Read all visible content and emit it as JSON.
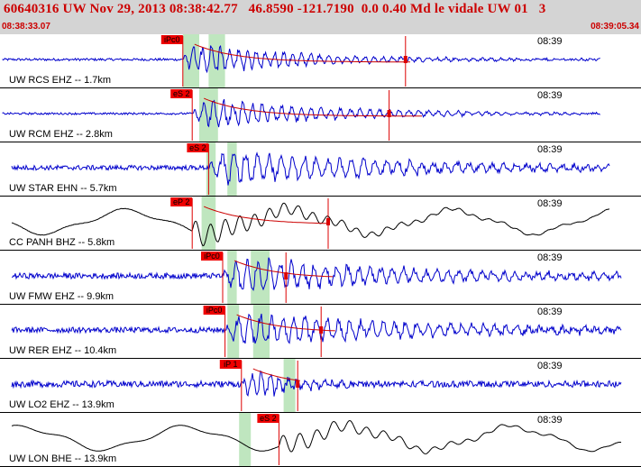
{
  "header": {
    "title": "60640316 UW Nov 29, 2013 08:38:42.77   46.8590 -121.7190  0.0 0.40 Md le vidale UW 01   3",
    "start_time": "08:38:33.07",
    "end_time": "08:39:05.34"
  },
  "colors": {
    "header_bg": "#d4d4d4",
    "title": "#cc0000",
    "trace_main": "#0000cc",
    "trace_alt": "#000000",
    "pick_line": "#dd0000",
    "pick_tag": "#ee0000",
    "window": "#bfe6bf",
    "coda": "#cc0000"
  },
  "tick_label": "08:39",
  "traces": [
    {
      "label": "UW RCS EHZ -- 1.7km",
      "time": "08:39",
      "pick": "iPc0",
      "color": "blue",
      "pick_time_s": 7.8,
      "windows_s": [
        [
          7.8,
          8.5
        ],
        [
          8.9,
          9.6
        ]
      ],
      "start_s": 0.1,
      "end_s": 25.6,
      "noise": 0.06,
      "amp": 0.95,
      "decay": 0.22,
      "freq": 2.6,
      "coda_end_s": 17.5,
      "end_mark_s": 17.3,
      "long_period": false
    },
    {
      "label": "UW RCM EHZ -- 2.8km",
      "time": "08:39",
      "pick": "eS 2",
      "color": "blue",
      "pick_time_s": 8.2,
      "windows_s": [
        [
          8.5,
          9.3
        ]
      ],
      "start_s": 0.1,
      "end_s": 25.6,
      "noise": 0.05,
      "amp": 0.85,
      "decay": 0.18,
      "freq": 2.4,
      "coda_end_s": 18.0,
      "end_mark_s": 16.6,
      "long_period": false
    },
    {
      "label": "UW STAR EHN -- 5.7km",
      "time": "08:39",
      "pick": "eS 2",
      "color": "blue",
      "pick_time_s": 8.9,
      "windows_s": [
        [
          8.8,
          9.2
        ],
        [
          9.7,
          10.1
        ]
      ],
      "start_s": 0.5,
      "end_s": 26.0,
      "noise": 0.12,
      "amp": 0.95,
      "decay": 0.12,
      "freq": 2.0,
      "coda_end_s": 0,
      "end_mark_s": 0,
      "long_period": false
    },
    {
      "label": "CC PANH BHZ -- 5.8km",
      "time": "08:39",
      "pick": "eP 2",
      "color": "black",
      "pick_time_s": 8.2,
      "windows_s": [
        [
          8.6,
          9.2
        ]
      ],
      "start_s": 0.5,
      "end_s": 26.0,
      "noise": 0.02,
      "amp": 0.6,
      "decay": 0.18,
      "freq": 1.6,
      "coda_end_s": 14.0,
      "end_mark_s": 14.0,
      "long_period": true
    },
    {
      "label": "UW FMW EHZ -- 9.9km",
      "time": "08:39",
      "pick": "iPc0",
      "color": "blue",
      "pick_time_s": 9.5,
      "windows_s": [
        [
          9.7,
          10.1
        ],
        [
          10.7,
          11.5
        ]
      ],
      "start_s": 0.5,
      "end_s": 26.5,
      "noise": 0.14,
      "amp": 0.95,
      "decay": 0.12,
      "freq": 2.1,
      "coda_end_s": 14.2,
      "end_mark_s": 12.2,
      "long_period": false
    },
    {
      "label": "UW RER EHZ -- 10.4km",
      "time": "08:39",
      "pick": "iPc0",
      "color": "blue",
      "pick_time_s": 9.6,
      "windows_s": [
        [
          9.7,
          10.2
        ],
        [
          10.8,
          11.5
        ]
      ],
      "start_s": 0.5,
      "end_s": 26.5,
      "noise": 0.14,
      "amp": 0.95,
      "decay": 0.12,
      "freq": 2.1,
      "coda_end_s": 14.3,
      "end_mark_s": 13.7,
      "long_period": false
    },
    {
      "label": "UW LO2 EHZ -- 13.9km",
      "time": "08:39",
      "pick": "iP 1",
      "color": "blue",
      "pick_time_s": 10.3,
      "windows_s": [
        [
          12.1,
          12.6
        ]
      ],
      "start_s": 0.5,
      "end_s": 26.5,
      "noise": 0.16,
      "amp": 0.9,
      "decay": 0.5,
      "freq": 2.6,
      "coda_end_s": 12.8,
      "end_mark_s": 12.7,
      "long_period": false
    },
    {
      "label": "UW LON BHE -- 13.9km",
      "time": "08:39",
      "pick": "eS 2",
      "color": "black",
      "pick_time_s": 11.9,
      "windows_s": [
        [
          10.2,
          10.7
        ]
      ],
      "start_s": 0.5,
      "end_s": 26.5,
      "noise": 0.01,
      "amp": 0.5,
      "decay": 0.2,
      "freq": 1.4,
      "coda_end_s": 0,
      "end_mark_s": 0,
      "long_period": true
    }
  ]
}
